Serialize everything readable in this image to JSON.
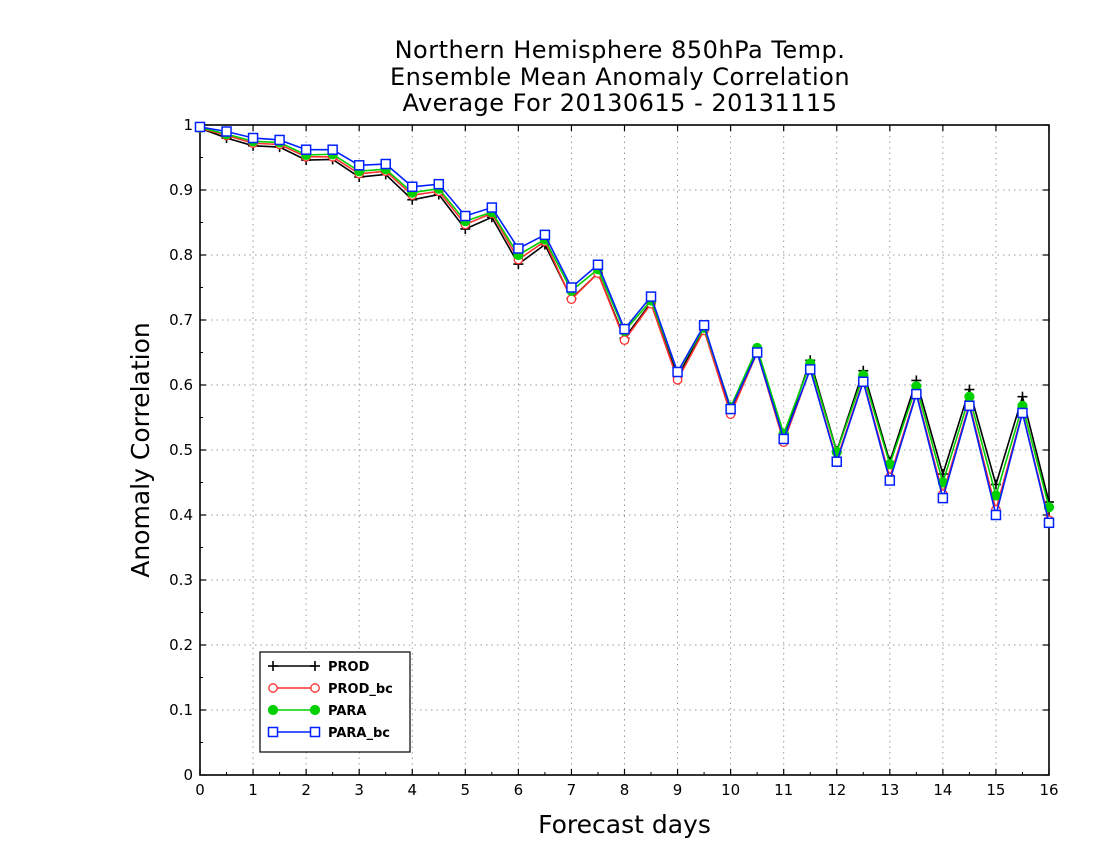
{
  "chart_data": {
    "type": "line",
    "title_lines": [
      "Northern Hemisphere 850hPa Temp.",
      "Ensemble Mean Anomaly Correlation",
      "Average For 20130615 - 20131115"
    ],
    "xlabel": "Forecast days",
    "ylabel": "Anomaly Correlation",
    "xlim": [
      0,
      16
    ],
    "ylim": [
      0,
      1
    ],
    "x_ticks": [
      "0",
      "1",
      "2",
      "3",
      "4",
      "5",
      "6",
      "7",
      "8",
      "9",
      "10",
      "11",
      "12",
      "13",
      "14",
      "15",
      "16"
    ],
    "y_ticks": [
      "0",
      "0.1",
      "0.2",
      "0.3",
      "0.4",
      "0.5",
      "0.6",
      "0.7",
      "0.8",
      "0.9",
      "1"
    ],
    "grid": true,
    "legend_position": "bottom-left",
    "x": [
      0,
      0.5,
      1,
      1.5,
      2,
      2.5,
      3,
      3.5,
      4,
      4.5,
      5,
      5.5,
      6,
      6.5,
      7,
      7.5,
      8,
      8.5,
      9,
      9.5,
      10,
      10.5,
      11,
      11.5,
      12,
      12.5,
      13,
      13.5,
      14,
      14.5,
      15,
      15.5,
      16
    ],
    "series": [
      {
        "name": "PROD",
        "color": "#000000",
        "marker": "plus",
        "values": [
          0.995,
          0.98,
          0.968,
          0.966,
          0.946,
          0.947,
          0.92,
          0.924,
          0.885,
          0.893,
          0.84,
          0.858,
          0.786,
          0.816,
          0.733,
          0.772,
          0.672,
          0.727,
          0.613,
          0.686,
          0.558,
          0.656,
          0.517,
          0.638,
          0.498,
          0.622,
          0.482,
          0.607,
          0.463,
          0.593,
          0.447,
          0.582,
          0.42
        ]
      },
      {
        "name": "PROD_bc",
        "color": "#ff3030",
        "marker": "circle-open",
        "values": [
          0.995,
          0.984,
          0.972,
          0.97,
          0.951,
          0.951,
          0.925,
          0.929,
          0.892,
          0.898,
          0.847,
          0.864,
          0.793,
          0.821,
          0.732,
          0.772,
          0.669,
          0.725,
          0.608,
          0.684,
          0.555,
          0.65,
          0.512,
          0.625,
          0.485,
          0.607,
          0.458,
          0.588,
          0.432,
          0.571,
          0.408,
          0.558,
          0.392
        ]
      },
      {
        "name": "PARA",
        "color": "#00d000",
        "marker": "circle-filled",
        "values": [
          0.996,
          0.986,
          0.975,
          0.973,
          0.954,
          0.955,
          0.929,
          0.932,
          0.896,
          0.902,
          0.852,
          0.866,
          0.8,
          0.824,
          0.745,
          0.778,
          0.683,
          0.73,
          0.62,
          0.688,
          0.566,
          0.657,
          0.525,
          0.633,
          0.497,
          0.615,
          0.478,
          0.598,
          0.45,
          0.582,
          0.43,
          0.568,
          0.412
        ]
      },
      {
        "name": "PARA_bc",
        "color": "#0020ff",
        "marker": "square-open",
        "values": [
          0.997,
          0.99,
          0.98,
          0.977,
          0.962,
          0.962,
          0.938,
          0.94,
          0.905,
          0.909,
          0.86,
          0.873,
          0.81,
          0.831,
          0.75,
          0.785,
          0.686,
          0.736,
          0.62,
          0.692,
          0.563,
          0.65,
          0.517,
          0.624,
          0.482,
          0.605,
          0.453,
          0.586,
          0.426,
          0.568,
          0.4,
          0.557,
          0.388
        ]
      }
    ]
  }
}
